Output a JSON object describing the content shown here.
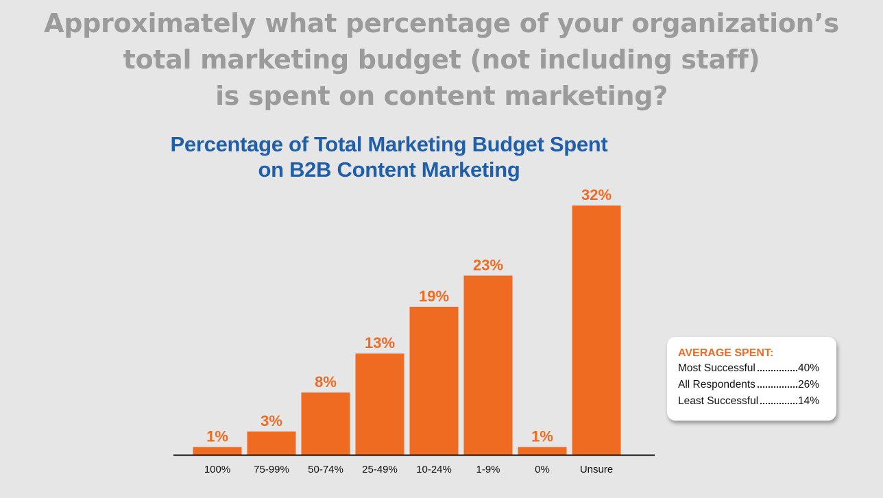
{
  "question": {
    "line1": "Approximately what percentage of your organization’s",
    "line2": "total marketing budget (not including staff)",
    "line3": "is spent on content marketing?"
  },
  "chart_data": {
    "type": "bar",
    "title": "Percentage of Total Marketing Budget Spent on B2B Content Marketing",
    "title_line1": "Percentage of Total Marketing Budget Spent",
    "title_line2": "on B2B Content Marketing",
    "categories": [
      "100%",
      "75-99%",
      "50-74%",
      "25-49%",
      "10-24%",
      "1-9%",
      "0%",
      "Unsure"
    ],
    "values": [
      1,
      3,
      8,
      13,
      19,
      23,
      1,
      32
    ],
    "value_labels": [
      "1%",
      "3%",
      "8%",
      "13%",
      "19%",
      "23%",
      "1%",
      "32%"
    ],
    "xlabel": "",
    "ylabel": "",
    "ylim": [
      0,
      32
    ],
    "grid": false,
    "bar_color": "#ee6b21",
    "label_color": "#ee6b21"
  },
  "average_box": {
    "title": "AVERAGE SPENT:",
    "rows": [
      {
        "label": "Most Successful",
        "value": "40%"
      },
      {
        "label": "All Respondents",
        "value": "26%"
      },
      {
        "label": "Least Successful",
        "value": "14%"
      }
    ]
  },
  "colors": {
    "background": "#e6e6e6",
    "question_text": "#9b9b9b",
    "title_text": "#1f5fa9",
    "accent": "#ee6b21"
  }
}
